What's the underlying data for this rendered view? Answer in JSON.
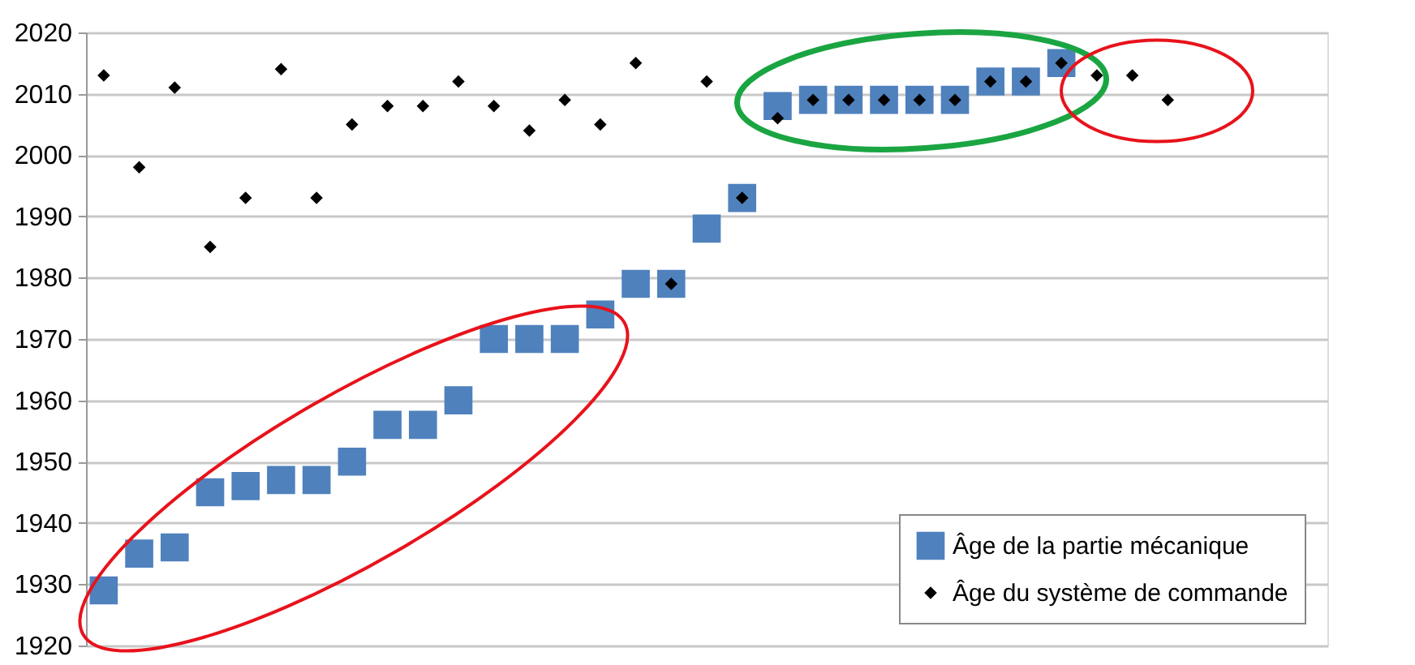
{
  "chart_data": {
    "type": "scatter",
    "categories": [
      null,
      null,
      null,
      null,
      null,
      null,
      null,
      null,
      null,
      null,
      null,
      null,
      null,
      null,
      null,
      null,
      null,
      null,
      null,
      null,
      null,
      null,
      null,
      null,
      null,
      null,
      null,
      null,
      null,
      null,
      null,
      null,
      null,
      null,
      null
    ],
    "series": [
      {
        "name": "Âge de la partie mécanique",
        "color": "#4f81bd",
        "marker": "square",
        "values": [
          1929,
          1935,
          1936,
          1945,
          1946,
          1947,
          1947,
          1950,
          1956,
          1956,
          1960,
          1970,
          1970,
          1970,
          1974,
          1979,
          1979,
          1988,
          1993,
          2008,
          2009,
          2009,
          2009,
          2009,
          2009,
          2012,
          2012,
          2015,
          null,
          null,
          null,
          null,
          null,
          null,
          null
        ]
      },
      {
        "name": "Âge du système de commande",
        "color": "#000000",
        "marker": "diamond",
        "values": [
          2013,
          1998,
          2011,
          1985,
          1993,
          2014,
          1993,
          2005,
          2008,
          2008,
          2012,
          2008,
          2004,
          2009,
          2005,
          2015,
          1979,
          2012,
          1993,
          2006,
          2009,
          2009,
          2009,
          2009,
          2009,
          2012,
          2012,
          2015,
          2013,
          2013,
          2009,
          null,
          null,
          null,
          null
        ]
      }
    ],
    "ylim": [
      1920,
      2020
    ],
    "yticks": [
      1920,
      1930,
      1940,
      1950,
      1960,
      1970,
      1980,
      1990,
      2000,
      2010,
      2020
    ],
    "grid": "y",
    "legend": "bottom right",
    "tick_labels": "y"
  }
}
